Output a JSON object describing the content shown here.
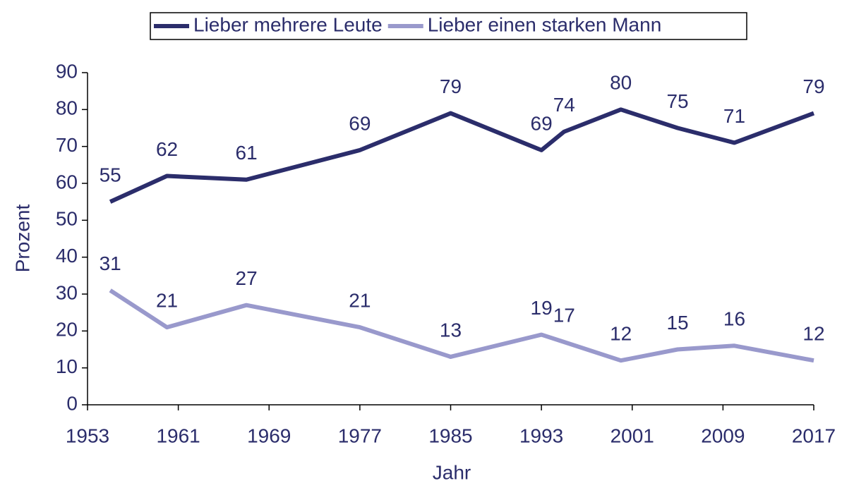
{
  "chart_data": {
    "type": "line",
    "x": [
      1955,
      1960,
      1967,
      1977,
      1985,
      1993,
      1995,
      2000,
      2005,
      2010,
      2017
    ],
    "series": [
      {
        "name": "Lieber mehrere Leute",
        "color": "#2b2d6b",
        "values": [
          55,
          62,
          61,
          69,
          79,
          69,
          74,
          80,
          75,
          71,
          79
        ]
      },
      {
        "name": "Lieber einen starken Mann",
        "color": "#9999cc",
        "values": [
          31,
          21,
          27,
          21,
          13,
          19,
          17,
          12,
          15,
          16,
          12
        ]
      }
    ],
    "xlabel": "Jahr",
    "ylabel": "Prozent",
    "xlim": [
      1953,
      2017
    ],
    "xticks": [
      1953,
      1961,
      1969,
      1977,
      1985,
      1993,
      2001,
      2009,
      2017
    ],
    "ylim": [
      0,
      90
    ],
    "yticks": [
      0,
      10,
      20,
      30,
      40,
      50,
      60,
      70,
      80,
      90
    ],
    "legend": "top"
  }
}
